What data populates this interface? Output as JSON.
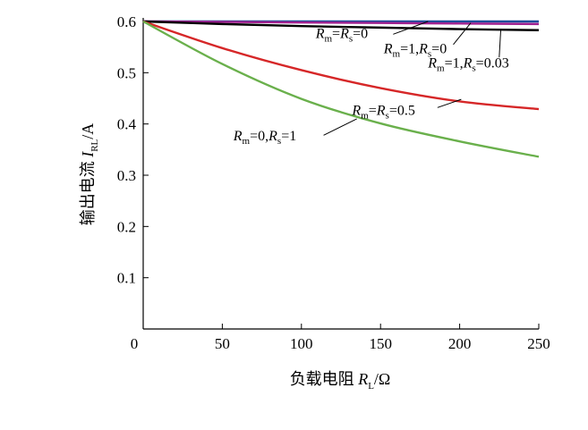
{
  "chart_data": {
    "type": "line",
    "xlabel_parts": [
      "负载电阻 ",
      "R",
      "L",
      "/Ω"
    ],
    "ylabel_parts": [
      "输出电流 ",
      "I",
      "RL",
      "/A"
    ],
    "xlim": [
      0,
      250
    ],
    "ylim": [
      0,
      0.6
    ],
    "x_ticks": [
      0,
      50,
      100,
      150,
      200,
      250
    ],
    "x_tick_labels": [
      "0",
      "50",
      "100",
      "150",
      "200",
      "250"
    ],
    "y_ticks": [
      0.1,
      0.2,
      0.3,
      0.4,
      0.5,
      0.6
    ],
    "y_tick_labels": [
      "0.1",
      "0.2",
      "0.3",
      "0.4",
      "0.5",
      "0.6"
    ],
    "grid": false,
    "legend": "none",
    "x": [
      0,
      50,
      100,
      150,
      200,
      250
    ],
    "series": [
      {
        "color": "#1f4e9c",
        "values": [
          0.6,
          0.6,
          0.6,
          0.6,
          0.6,
          0.6
        ]
      },
      {
        "color": "#a0208f",
        "values": [
          0.6,
          0.599,
          0.598,
          0.597,
          0.596,
          0.595
        ]
      },
      {
        "color": "#000000",
        "values": [
          0.6,
          0.595,
          0.591,
          0.588,
          0.585,
          0.583
        ]
      },
      {
        "color": "#d62728",
        "values": [
          0.6,
          0.548,
          0.505,
          0.47,
          0.444,
          0.429
        ]
      },
      {
        "color": "#6ab04c",
        "values": [
          0.6,
          0.517,
          0.449,
          0.401,
          0.366,
          0.336
        ]
      }
    ],
    "annotations": [
      {
        "parts": [
          "R",
          "m",
          "=",
          "R",
          "s",
          "=0"
        ],
        "text_at": [
          109,
          0.568
        ],
        "line_from": [
          158,
          0.575
        ],
        "line_to": [
          180,
          0.6
        ]
      },
      {
        "parts": [
          "R",
          "m",
          "=1,",
          "R",
          "s",
          "=0"
        ],
        "text_at": [
          152,
          0.538
        ],
        "line_from": [
          196,
          0.555
        ],
        "line_to": [
          207,
          0.597
        ]
      },
      {
        "parts": [
          "R",
          "m",
          "=1,",
          "R",
          "s",
          "=0.03"
        ],
        "text_at": [
          180,
          0.51
        ],
        "line_from": [
          225,
          0.53
        ],
        "line_to": [
          226,
          0.585
        ]
      },
      {
        "parts": [
          "R",
          "m",
          "=",
          "R",
          "s",
          "=0.5"
        ],
        "text_at": [
          132,
          0.418
        ],
        "line_from": [
          186,
          0.432
        ],
        "line_to": [
          201,
          0.448
        ]
      },
      {
        "parts": [
          "R",
          "m",
          "=0,",
          "R",
          "s",
          "=1"
        ],
        "text_at": [
          57,
          0.368
        ],
        "line_from": [
          114,
          0.378
        ],
        "line_to": [
          135,
          0.41
        ]
      }
    ]
  }
}
